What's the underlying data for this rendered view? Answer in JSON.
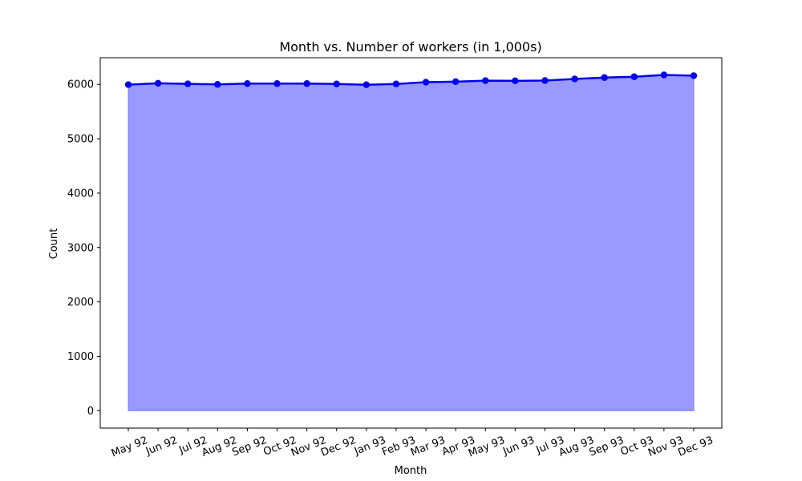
{
  "chart_data": {
    "type": "area",
    "title": "Month vs. Number of workers (in 1,000s)",
    "xlabel": "Month",
    "ylabel": "Count",
    "categories": [
      "May 92",
      "Jun 92",
      "Jul 92",
      "Aug 92",
      "Sep 92",
      "Oct 92",
      "Nov 92",
      "Dec 92",
      "Jan 93",
      "Feb 93",
      "Mar 93",
      "Apr 93",
      "May 93",
      "Jun 93",
      "Jul 93",
      "Aug 93",
      "Sep 93",
      "Oct 93",
      "Nov 93",
      "Dec 93"
    ],
    "values": [
      5995,
      6020,
      6010,
      6000,
      6015,
      6015,
      6015,
      6008,
      5993,
      6008,
      6040,
      6050,
      6068,
      6065,
      6070,
      6100,
      6125,
      6140,
      6173,
      6160
    ],
    "yticks": [
      0,
      1000,
      2000,
      3000,
      4000,
      5000,
      6000
    ],
    "ylim": [
      -320,
      6490
    ],
    "grid": false,
    "colors": {
      "line": "#0000ee",
      "marker": "#0000ee",
      "fill": "#9999ff",
      "fill_edge": "#7777ee"
    }
  }
}
